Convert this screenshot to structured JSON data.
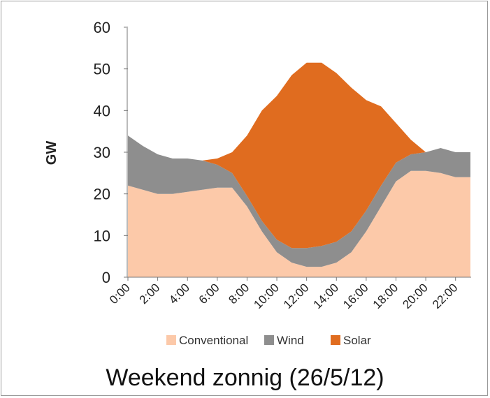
{
  "chart_data": {
    "type": "area",
    "stacked": true,
    "ylabel": "GW",
    "xlabel": "",
    "ylim": [
      0,
      60
    ],
    "yticks": [
      "0",
      "10",
      "20",
      "30",
      "40",
      "50",
      "60"
    ],
    "x_tick_labels": [
      "0:00",
      "2:00",
      "4:00",
      "6:00",
      "8:00",
      "10:00",
      "12:00",
      "14:00",
      "16:00",
      "18:00",
      "20:00",
      "22:00"
    ],
    "x": [
      0,
      1,
      2,
      3,
      4,
      5,
      6,
      7,
      8,
      9,
      10,
      11,
      12,
      13,
      14,
      15,
      16,
      17,
      18,
      19,
      20,
      21,
      22,
      23
    ],
    "series": [
      {
        "name": "Conventional",
        "color": "#fcc9a9",
        "values": [
          22,
          21,
          20,
          20,
          20.5,
          21,
          21.5,
          21.5,
          17,
          11,
          6,
          3.5,
          2.5,
          2.5,
          3.5,
          6,
          11,
          17,
          23,
          25.5,
          25.5,
          25,
          24,
          24
        ]
      },
      {
        "name": "Wind",
        "color": "#8e8e8e",
        "values": [
          12,
          10.5,
          9.5,
          8.5,
          8,
          7,
          5.5,
          3.5,
          2.5,
          2.5,
          3,
          3.5,
          4.5,
          5,
          5,
          5,
          5,
          5,
          4.5,
          4,
          4.5,
          6,
          6,
          6
        ]
      },
      {
        "name": "Solar",
        "color": "#e06c1f",
        "values": [
          0,
          0,
          0,
          0,
          0,
          0,
          1.5,
          5,
          14.5,
          26.5,
          34.5,
          41.5,
          44.5,
          44,
          40.5,
          34.5,
          26.5,
          19,
          9.5,
          3.5,
          0,
          0,
          0,
          0
        ]
      }
    ],
    "legend_position": "bottom",
    "grid": false
  },
  "caption": "Weekend zonnig  (26/5/12)"
}
